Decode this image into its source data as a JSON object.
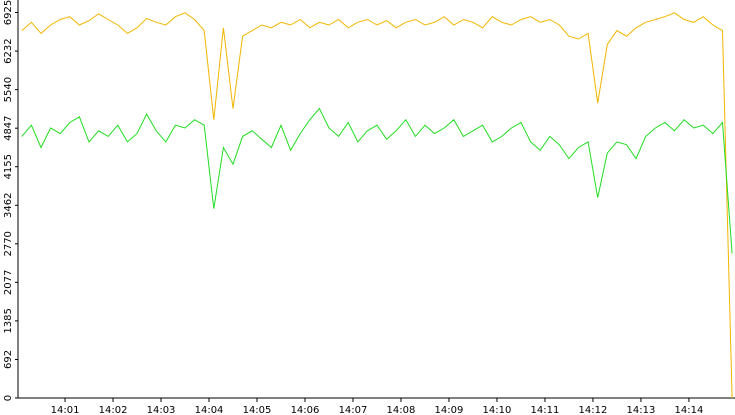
{
  "chart_data": {
    "type": "line",
    "x": [
      840.1,
      840.3,
      840.5,
      840.7,
      840.9,
      841.1,
      841.3,
      841.5,
      841.7,
      841.9,
      842.1,
      842.3,
      842.5,
      842.7,
      842.9,
      843.1,
      843.3,
      843.5,
      843.7,
      843.9,
      844.1,
      844.3,
      844.5,
      844.7,
      844.9,
      845.1,
      845.3,
      845.5,
      845.7,
      845.9,
      846.1,
      846.3,
      846.5,
      846.7,
      846.9,
      847.1,
      847.3,
      847.5,
      847.7,
      847.9,
      848.1,
      848.3,
      848.5,
      848.7,
      848.9,
      849.1,
      849.3,
      849.5,
      849.7,
      849.9,
      850.1,
      850.3,
      850.5,
      850.7,
      850.9,
      851.1,
      851.3,
      851.5,
      851.7,
      851.9,
      852.1,
      852.3,
      852.5,
      852.7,
      852.9,
      853.1,
      853.3,
      853.5,
      853.7,
      853.9,
      854.1,
      854.3,
      854.5,
      854.7,
      854.9
    ],
    "series": [
      {
        "color": "#f2b600",
        "values": [
          6600,
          6750,
          6550,
          6700,
          6800,
          6850,
          6700,
          6780,
          6900,
          6800,
          6700,
          6550,
          6650,
          6820,
          6750,
          6700,
          6850,
          6920,
          6800,
          6600,
          5000,
          6650,
          5200,
          6500,
          6600,
          6700,
          6650,
          6750,
          6700,
          6800,
          6650,
          6750,
          6700,
          6800,
          6650,
          6750,
          6800,
          6700,
          6780,
          6650,
          6750,
          6800,
          6700,
          6750,
          6850,
          6700,
          6800,
          6750,
          6650,
          6850,
          6750,
          6700,
          6800,
          6850,
          6750,
          6800,
          6700,
          6500,
          6450,
          6550,
          5300,
          6350,
          6600,
          6500,
          6650,
          6750,
          6800,
          6850,
          6920,
          6800,
          6750,
          6850,
          6700,
          6600,
          0
        ]
      },
      {
        "color": "#22dd22",
        "values": [
          4700,
          4900,
          4500,
          4850,
          4750,
          4950,
          5050,
          4600,
          4800,
          4700,
          4900,
          4600,
          4750,
          5100,
          4800,
          4600,
          4900,
          4850,
          5000,
          4900,
          3400,
          4500,
          4200,
          4700,
          4800,
          4650,
          4500,
          4900,
          4450,
          4750,
          5000,
          5200,
          4850,
          4700,
          4950,
          4600,
          4800,
          4900,
          4650,
          4800,
          5000,
          4700,
          4900,
          4750,
          4850,
          5000,
          4700,
          4800,
          4900,
          4600,
          4700,
          4850,
          4950,
          4600,
          4450,
          4700,
          4550,
          4300,
          4500,
          4600,
          3600,
          4400,
          4600,
          4550,
          4300,
          4700,
          4850,
          4950,
          4800,
          5000,
          4850,
          4900,
          4750,
          4950,
          2600
        ]
      }
    ],
    "xlim": [
      840.02,
      854.96
    ],
    "xticks": [
      {
        "value": 841,
        "label": "14:01"
      },
      {
        "value": 842,
        "label": "14:02"
      },
      {
        "value": 843,
        "label": "14:03"
      },
      {
        "value": 844,
        "label": "14:04"
      },
      {
        "value": 845,
        "label": "14:05"
      },
      {
        "value": 846,
        "label": "14:06"
      },
      {
        "value": 847,
        "label": "14:07"
      },
      {
        "value": 848,
        "label": "14:08"
      },
      {
        "value": 849,
        "label": "14:09"
      },
      {
        "value": 850,
        "label": "14:10"
      },
      {
        "value": 851,
        "label": "14:11"
      },
      {
        "value": 852,
        "label": "14:12"
      },
      {
        "value": 853,
        "label": "14:13"
      },
      {
        "value": 854,
        "label": "14:14"
      }
    ],
    "ylim": [
      0,
      7150
    ],
    "yticks": [
      0,
      692,
      1385,
      2077,
      2770,
      3462,
      4155,
      4847,
      5540,
      6232,
      6925
    ]
  }
}
